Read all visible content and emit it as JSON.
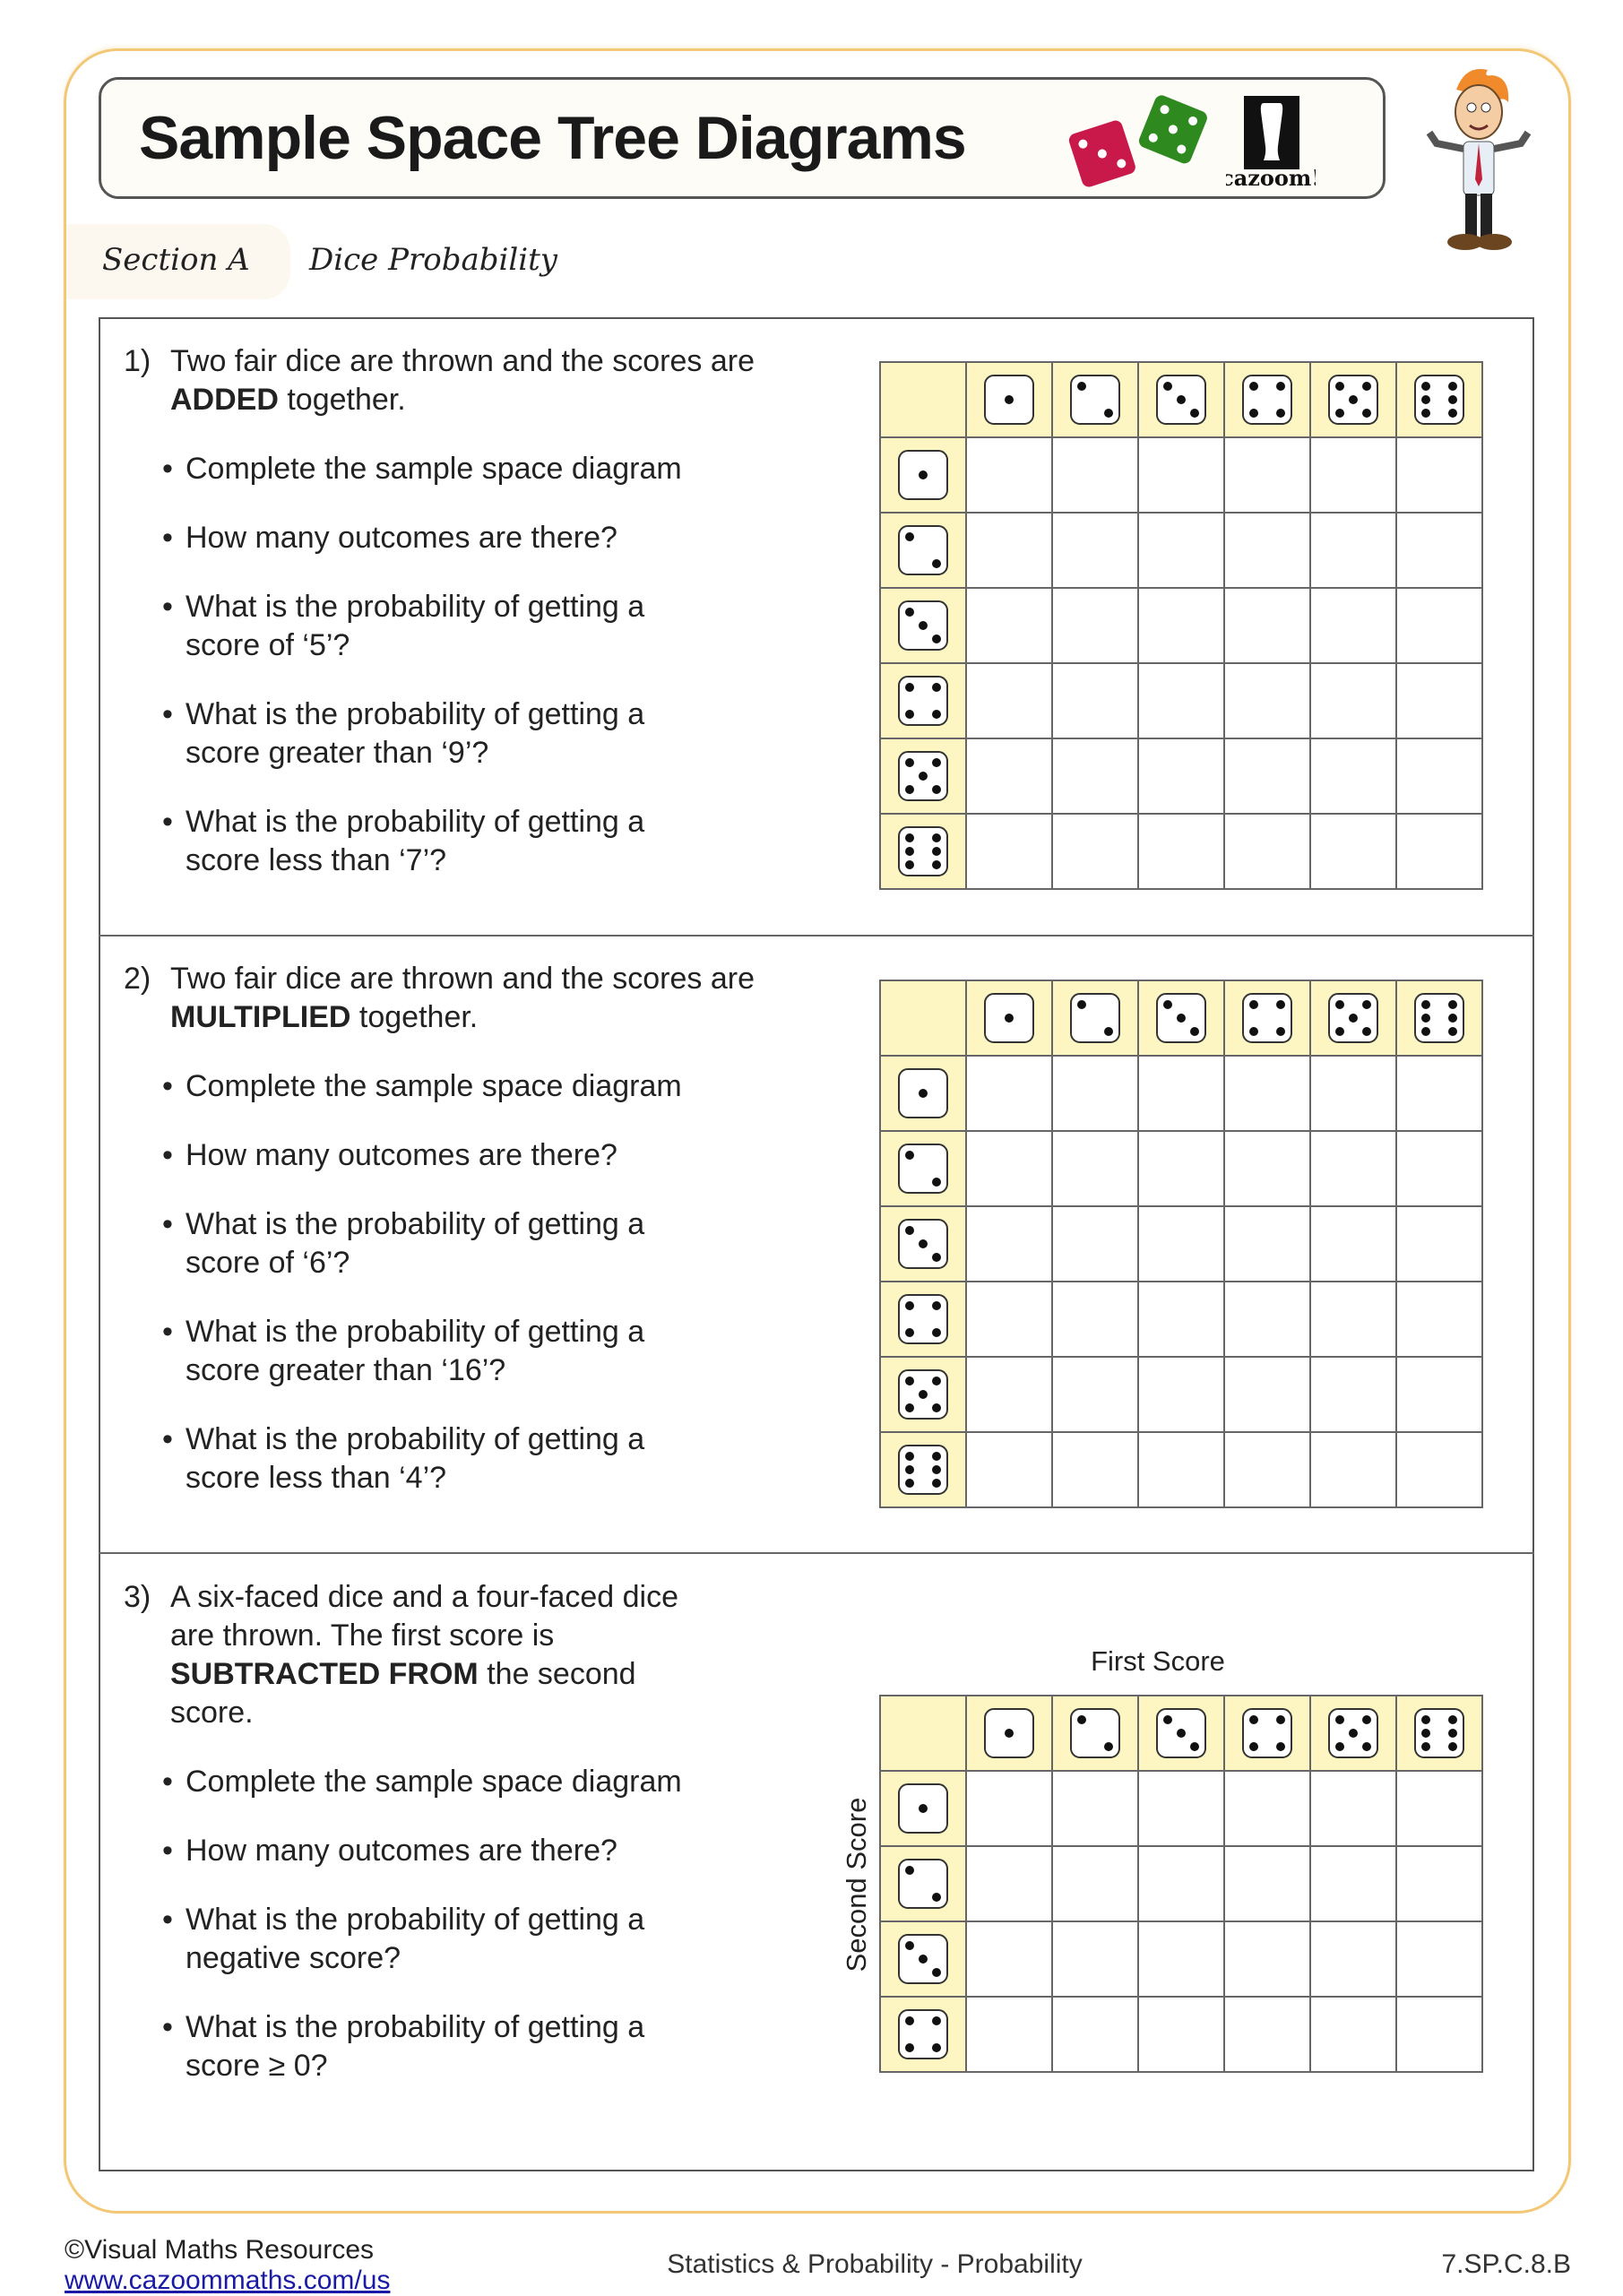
{
  "header": {
    "title": "Sample Space Tree Diagrams",
    "logo_text": "cazoom!",
    "section_label": "Section A",
    "section_title": "Dice Probability"
  },
  "colors": {
    "frame": "#f2c776",
    "grid_header": "#fdf6c3",
    "red_die": "#c8194a",
    "green_die": "#2e8a1f"
  },
  "questions": [
    {
      "number": "1)",
      "stem_before": "Two fair dice are thrown and the scores are ",
      "stem_bold": "ADDED",
      "stem_after": " together.",
      "bullets": [
        "Complete the sample space diagram",
        "How many outcomes are there?",
        "What is the probability of getting a score of ‘5’?",
        "What is the probability of getting a score greater than ‘9’?",
        "What is the probability of getting a score less than ‘7’?"
      ],
      "grid": {
        "columns": [
          1,
          2,
          3,
          4,
          5,
          6
        ],
        "rows": [
          1,
          2,
          3,
          4,
          5,
          6
        ]
      }
    },
    {
      "number": "2)",
      "stem_before": "Two fair dice are thrown and the scores are ",
      "stem_bold": "MULTIPLIED",
      "stem_after": " together.",
      "bullets": [
        "Complete the sample space diagram",
        "How many outcomes are there?",
        "What is the probability of getting a score of ‘6’?",
        "What is the probability of getting a score greater than ‘16’?",
        "What is the probability of getting a score less than ‘4’?"
      ],
      "grid": {
        "columns": [
          1,
          2,
          3,
          4,
          5,
          6
        ],
        "rows": [
          1,
          2,
          3,
          4,
          5,
          6
        ]
      }
    },
    {
      "number": "3)",
      "stem_before": "A six-faced dice and a four-faced dice are thrown. The first score is ",
      "stem_bold": "SUBTRACTED FROM",
      "stem_after": " the second score.",
      "bullets": [
        "Complete the sample space diagram",
        "How many outcomes are there?",
        "What is the probability of getting a negative score?",
        "What is the probability of getting a score ≥ 0?"
      ],
      "grid": {
        "columns": [
          1,
          2,
          3,
          4,
          5,
          6
        ],
        "rows": [
          1,
          2,
          3,
          4
        ],
        "column_axis_label": "First Score",
        "row_axis_label": "Second Score"
      }
    }
  ],
  "footer": {
    "copyright": "©Visual Maths Resources",
    "link": "www.cazoommaths.com/us",
    "topic": "Statistics & Probability - Probability",
    "code": "7.SP.C.8.B"
  }
}
